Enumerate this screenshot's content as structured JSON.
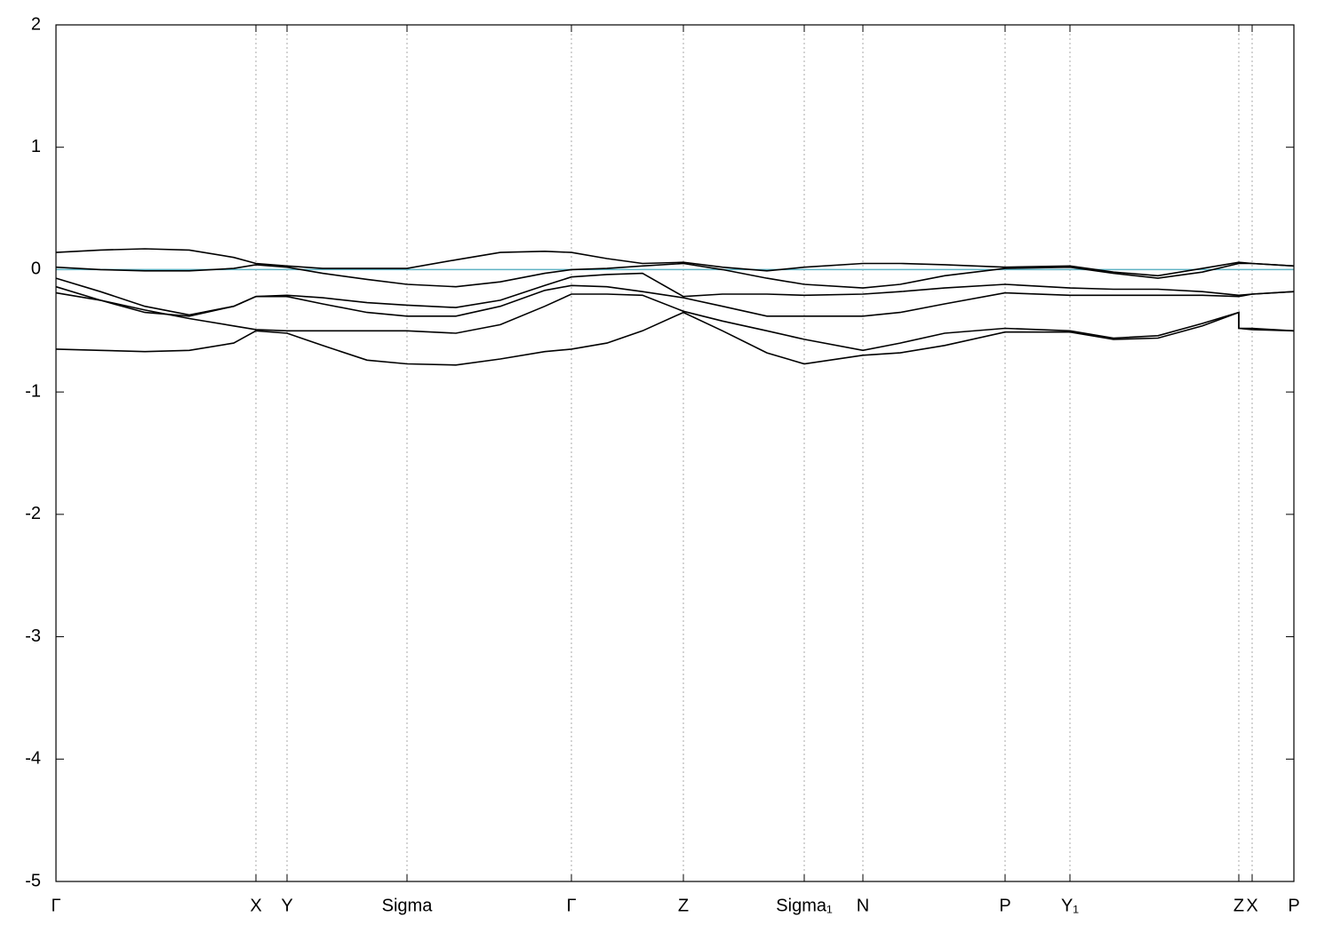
{
  "chart_data": {
    "type": "line",
    "x": [
      0,
      0.5,
      1.0,
      1.5,
      2.0,
      2.25,
      2.6,
      3.0,
      3.5,
      3.95,
      4.5,
      5.0,
      5.5,
      5.8,
      6.2,
      6.6,
      7.06,
      7.5,
      8.0,
      8.42,
      9.08,
      9.5,
      10.0,
      10.68,
      11.41,
      11.9,
      12.4,
      12.9,
      13.31,
      13.31,
      13.46,
      13.93
    ],
    "series": [
      {
        "color": "#000000",
        "values": [
          0.14,
          0.16,
          0.17,
          0.16,
          0.1,
          0.05,
          0.03,
          0.01,
          0.01,
          0.01,
          0.08,
          0.14,
          0.15,
          0.14,
          0.09,
          0.05,
          0.06,
          0.02,
          -0.01,
          0.02,
          0.05,
          0.05,
          0.04,
          0.02,
          0.03,
          -0.02,
          -0.05,
          0.01,
          0.06,
          0.06,
          0.05,
          0.03
        ]
      },
      {
        "color": "#000000",
        "values": [
          0.02,
          0.0,
          -0.01,
          -0.01,
          0.01,
          0.04,
          0.02,
          -0.03,
          -0.08,
          -0.12,
          -0.14,
          -0.1,
          -0.03,
          0.0,
          0.01,
          0.03,
          0.05,
          0.0,
          -0.07,
          -0.12,
          -0.15,
          -0.12,
          -0.05,
          0.01,
          0.02,
          -0.03,
          -0.07,
          -0.02,
          0.05,
          0.05,
          0.05,
          0.03
        ]
      },
      {
        "color": "#000000",
        "values": [
          -0.07,
          -0.18,
          -0.3,
          -0.37,
          -0.3,
          -0.22,
          -0.21,
          -0.23,
          -0.27,
          -0.29,
          -0.31,
          -0.25,
          -0.13,
          -0.06,
          -0.04,
          -0.03,
          -0.22,
          -0.2,
          -0.2,
          -0.21,
          -0.2,
          -0.18,
          -0.15,
          -0.12,
          -0.15,
          -0.16,
          -0.16,
          -0.18,
          -0.21,
          -0.21,
          -0.2,
          -0.18
        ]
      },
      {
        "color": "#000000",
        "values": [
          -0.14,
          -0.25,
          -0.35,
          -0.38,
          -0.3,
          -0.22,
          -0.22,
          -0.28,
          -0.35,
          -0.38,
          -0.38,
          -0.3,
          -0.17,
          -0.13,
          -0.14,
          -0.18,
          -0.23,
          -0.3,
          -0.38,
          -0.38,
          -0.38,
          -0.35,
          -0.28,
          -0.19,
          -0.21,
          -0.21,
          -0.21,
          -0.21,
          -0.22,
          -0.22,
          -0.2,
          -0.18
        ]
      },
      {
        "color": "#000000",
        "values": [
          -0.19,
          -0.25,
          -0.33,
          -0.4,
          -0.46,
          -0.49,
          -0.5,
          -0.5,
          -0.5,
          -0.5,
          -0.52,
          -0.45,
          -0.3,
          -0.2,
          -0.2,
          -0.21,
          -0.34,
          -0.42,
          -0.5,
          -0.57,
          -0.66,
          -0.6,
          -0.52,
          -0.48,
          -0.5,
          -0.56,
          -0.54,
          -0.44,
          -0.35,
          -0.48,
          -0.48,
          -0.5
        ]
      },
      {
        "color": "#000000",
        "values": [
          -0.65,
          -0.66,
          -0.67,
          -0.66,
          -0.6,
          -0.5,
          -0.52,
          -0.62,
          -0.74,
          -0.77,
          -0.78,
          -0.73,
          -0.67,
          -0.65,
          -0.6,
          -0.5,
          -0.35,
          -0.5,
          -0.68,
          -0.77,
          -0.7,
          -0.68,
          -0.62,
          -0.51,
          -0.51,
          -0.57,
          -0.56,
          -0.46,
          -0.35,
          -0.48,
          -0.49,
          -0.5
        ]
      }
    ],
    "hlines": [
      {
        "value": 0,
        "color": "#5fb3c4"
      }
    ],
    "xlim": [
      0,
      13.93
    ],
    "xticks": [
      {
        "value": 0,
        "label": "Γ"
      },
      {
        "value": 2.25,
        "label": "X"
      },
      {
        "value": 2.6,
        "label": "Y"
      },
      {
        "value": 3.95,
        "label": "Sigma"
      },
      {
        "value": 5.8,
        "label": "Γ"
      },
      {
        "value": 7.06,
        "label": "Z"
      },
      {
        "value": 8.42,
        "label": "Sigma₁"
      },
      {
        "value": 9.08,
        "label": "N"
      },
      {
        "value": 10.68,
        "label": "P"
      },
      {
        "value": 11.41,
        "label": "Y₁"
      },
      {
        "value": 13.31,
        "label": "Z"
      },
      {
        "value": 13.46,
        "label": "X"
      },
      {
        "value": 13.93,
        "label": "P"
      }
    ],
    "ylim": [
      -5,
      2
    ],
    "yticks": [
      -5,
      -4,
      -3,
      -2,
      -1,
      0,
      1,
      2
    ],
    "grid": true
  }
}
